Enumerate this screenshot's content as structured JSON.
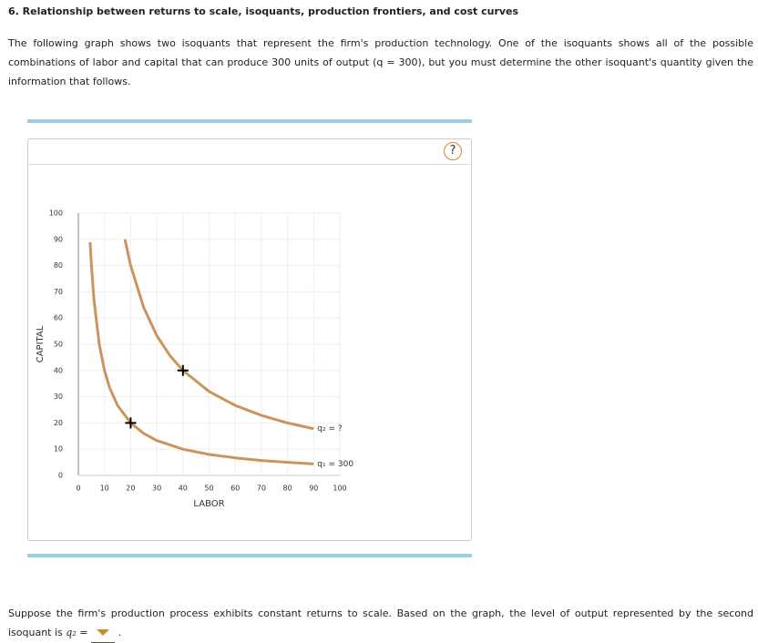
{
  "header": {
    "title": "6. Relationship between returns to scale, isoquants, production frontiers, and cost curves"
  },
  "intro": "The following graph shows two isoquants that represent the firm's production technology. One of the isoquants shows all of the possible combinations of labor and capital that can produce 300 units of output (q = 300), but you must determine the other isoquant's quantity given the information that follows.",
  "help": "?",
  "chart_data": {
    "type": "line",
    "xlabel": "LABOR",
    "ylabel": "CAPITAL",
    "xlim": [
      0,
      100
    ],
    "ylim": [
      0,
      100
    ],
    "xticks": [
      0,
      10,
      20,
      30,
      40,
      50,
      60,
      70,
      80,
      90,
      100
    ],
    "yticks": [
      0,
      10,
      20,
      30,
      40,
      50,
      60,
      70,
      80,
      90,
      100
    ],
    "grid": true,
    "series": [
      {
        "name": "q₂ = ?",
        "color": "#c9955c",
        "x": [
          17.8,
          20,
          25,
          30,
          35,
          40,
          50,
          60,
          70,
          80,
          90
        ],
        "values": [
          90,
          80,
          64,
          53.3,
          45.7,
          40,
          32,
          26.7,
          22.9,
          20,
          17.8
        ]
      },
      {
        "name": "q₁ = 300",
        "color": "#c9955c",
        "x": [
          4.5,
          5,
          6,
          8,
          10,
          12,
          15,
          20,
          25,
          30,
          40,
          50,
          60,
          70,
          80,
          90
        ],
        "values": [
          88.9,
          80,
          66.7,
          50,
          40,
          33.3,
          26.7,
          20,
          16,
          13.3,
          10,
          8,
          6.7,
          5.7,
          5,
          4.4
        ]
      }
    ],
    "points": {
      "x": [
        20,
        40
      ],
      "values": [
        20,
        40
      ]
    }
  },
  "question": "Suppose the firm's production process exhibits constant returns to scale. Based on the graph, the level of output represented by the second isoquant is",
  "answer_label": "q₂ ="
}
